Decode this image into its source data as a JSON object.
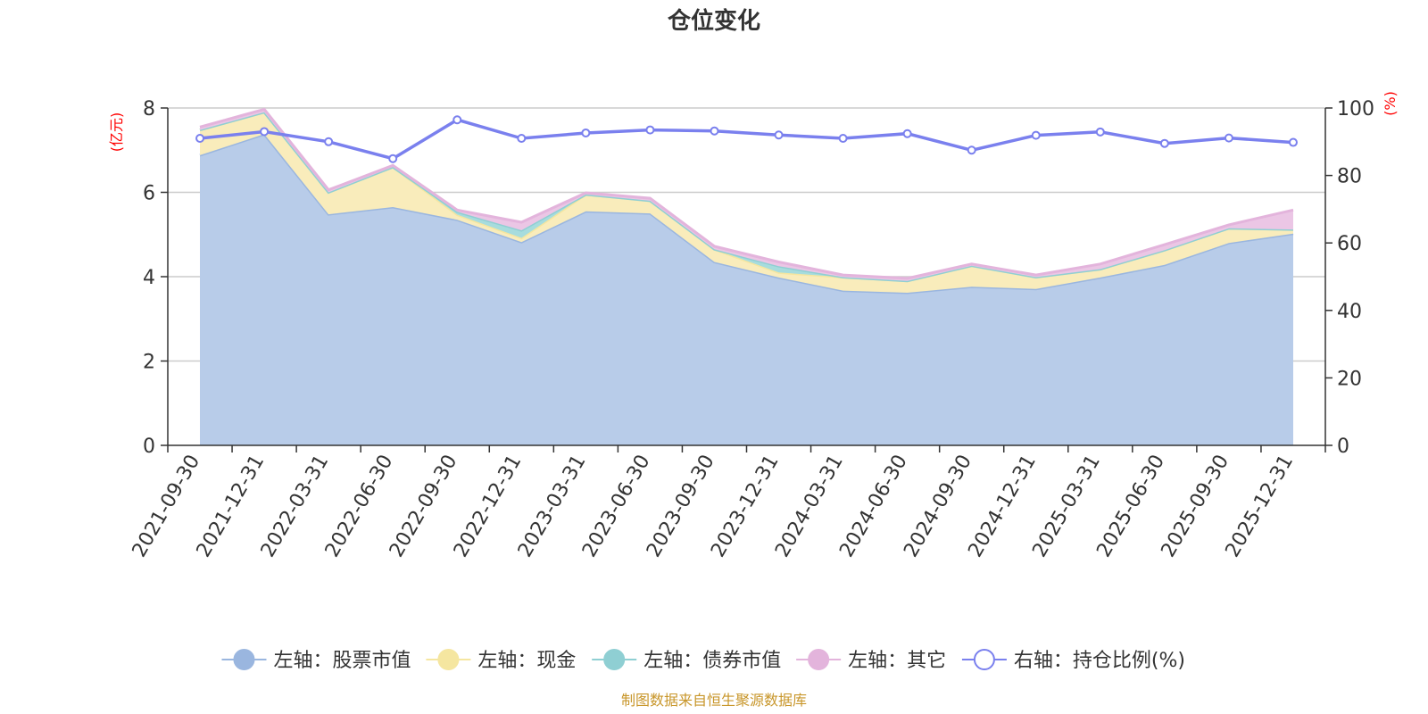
{
  "title": "仓位变化",
  "source": "制图数据来自恒生聚源数据库",
  "chart_data": {
    "type": "area",
    "title": "仓位变化",
    "x": [
      "2021-09-30",
      "2021-12-31",
      "2022-03-31",
      "2022-06-30",
      "2022-09-30",
      "2022-12-31",
      "2023-03-31",
      "2023-06-30",
      "2023-09-30",
      "2023-12-31",
      "2024-03-31",
      "2024-06-30",
      "2024-09-30",
      "2024-12-31",
      "2025-03-31",
      "2025-06-30",
      "2025-09-30",
      "2025-12-31"
    ],
    "left_axis": {
      "unit": "(亿元)",
      "min": 0,
      "max": 8,
      "ticks": [
        0,
        2,
        4,
        6,
        8
      ]
    },
    "right_axis": {
      "unit": "(%)",
      "min": 0,
      "max": 100,
      "ticks": [
        0,
        20,
        40,
        60,
        80,
        100
      ]
    },
    "grid": true,
    "legend_position": "bottom",
    "stacked_series": [
      {
        "name": "左轴：股票市值",
        "color": "#9ab6df",
        "fill": "#b8cce9",
        "values": [
          6.88,
          7.38,
          5.48,
          5.65,
          5.35,
          4.82,
          5.55,
          5.5,
          4.35,
          3.98,
          3.67,
          3.62,
          3.76,
          3.71,
          3.98,
          4.28,
          4.8,
          5.02
        ]
      },
      {
        "name": "左轴：现金",
        "color": "#f5e6a0",
        "fill": "#f9ecbb",
        "values": [
          0.6,
          0.52,
          0.52,
          0.95,
          0.12,
          0.1,
          0.4,
          0.3,
          0.3,
          0.12,
          0.32,
          0.28,
          0.5,
          0.28,
          0.2,
          0.35,
          0.35,
          0.1
        ]
      },
      {
        "name": "左轴：债券市值",
        "color": "#8fcfd3",
        "fill": "#a7dcdd",
        "values": [
          0,
          0,
          0,
          0,
          0.07,
          0.18,
          0,
          0,
          0,
          0.15,
          0,
          0,
          0,
          0,
          0,
          0,
          0,
          0
        ]
      },
      {
        "name": "左轴：其它",
        "color": "#e3b4dc",
        "fill": "#ebc6e5",
        "values": [
          0.07,
          0.07,
          0.06,
          0.04,
          0.04,
          0.19,
          0.04,
          0.06,
          0.07,
          0.1,
          0.05,
          0.06,
          0.04,
          0.05,
          0.12,
          0.13,
          0.08,
          0.46
        ]
      }
    ],
    "line_series": {
      "name": "右轴：持仓比例(%)",
      "color": "#7a80ee",
      "axis": "right",
      "values": [
        91,
        93,
        90,
        85,
        96.5,
        91,
        92.6,
        93.5,
        93.2,
        92,
        91,
        92.4,
        87.5,
        91.9,
        92.9,
        89.5,
        91.1,
        89.8
      ]
    }
  }
}
